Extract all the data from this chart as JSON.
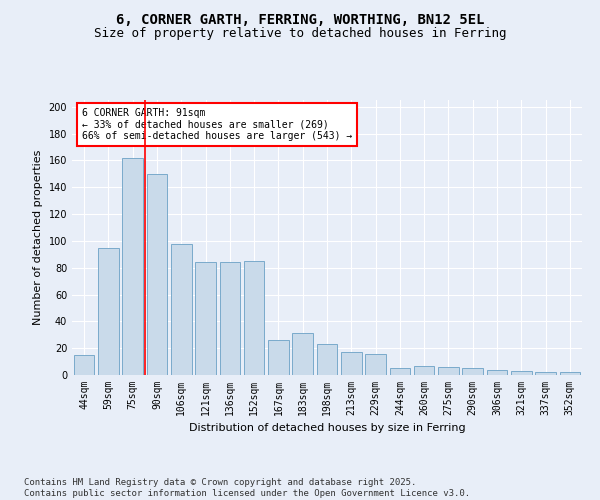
{
  "title_line1": "6, CORNER GARTH, FERRING, WORTHING, BN12 5EL",
  "title_line2": "Size of property relative to detached houses in Ferring",
  "xlabel": "Distribution of detached houses by size in Ferring",
  "ylabel": "Number of detached properties",
  "categories": [
    "44sqm",
    "59sqm",
    "75sqm",
    "90sqm",
    "106sqm",
    "121sqm",
    "136sqm",
    "152sqm",
    "167sqm",
    "183sqm",
    "198sqm",
    "213sqm",
    "229sqm",
    "244sqm",
    "260sqm",
    "275sqm",
    "290sqm",
    "306sqm",
    "321sqm",
    "337sqm",
    "352sqm"
  ],
  "bar_heights": [
    15,
    95,
    162,
    150,
    98,
    84,
    84,
    85,
    26,
    31,
    23,
    17,
    16,
    5,
    7,
    6,
    5,
    4,
    3,
    2,
    2
  ],
  "bar_color": "#c9daea",
  "bar_edgecolor": "#7aaacb",
  "vline_x": 3,
  "vline_color": "red",
  "annotation_text": "6 CORNER GARTH: 91sqm\n← 33% of detached houses are smaller (269)\n66% of semi-detached houses are larger (543) →",
  "ylim": [
    0,
    205
  ],
  "yticks": [
    0,
    20,
    40,
    60,
    80,
    100,
    120,
    140,
    160,
    180,
    200
  ],
  "bg_color": "#e8eef8",
  "plot_bg_color": "#e8eef8",
  "footer": "Contains HM Land Registry data © Crown copyright and database right 2025.\nContains public sector information licensed under the Open Government Licence v3.0.",
  "title_fontsize": 10,
  "subtitle_fontsize": 9,
  "axis_label_fontsize": 8,
  "tick_fontsize": 7,
  "footer_fontsize": 6.5
}
